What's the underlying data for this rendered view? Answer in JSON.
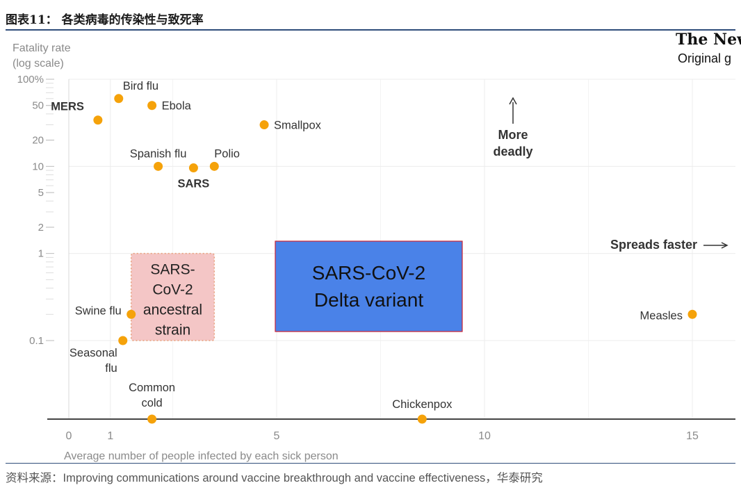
{
  "figure_title": "图表11：  各类病毒的传染性与致死率",
  "source_note": "资料来源：Improving communications around vaccine breakthrough and vaccine effectiveness，华泰研究",
  "attribution": {
    "masthead": "The New Y",
    "credit": "Original g"
  },
  "colors": {
    "point": "#f5a20a",
    "blue_box": "#4a82e8",
    "blue_border": "#cc2233",
    "pink_box": "#f4c6c6",
    "pink_border": "#e8a07a",
    "rule": "#2f4d7a"
  },
  "chart_data": {
    "type": "scatter",
    "title": "",
    "xlabel": "Average number of people infected by each sick person",
    "ylabel": "Fatality rate (log scale)",
    "ylabel_lines": [
      "Fatality rate",
      "(log scale)"
    ],
    "y_scale": "log",
    "xlim": [
      0,
      16
    ],
    "ylim": [
      0.1,
      100
    ],
    "x_ticks": [
      0,
      1,
      5,
      10,
      15
    ],
    "x_tick_labels": [
      "0",
      "1",
      "5",
      "10",
      "15"
    ],
    "y_ticks": [
      100,
      50,
      20,
      10,
      5,
      2,
      1,
      0.1
    ],
    "y_tick_labels": [
      "100%",
      "50",
      "20",
      "10",
      "5",
      "2",
      "1",
      "0.1"
    ],
    "baseline_label": "0",
    "points": [
      {
        "name": "Bird flu",
        "x": 1.2,
        "y": 60,
        "bold": false
      },
      {
        "name": "MERS",
        "x": 0.7,
        "y": 34,
        "bold": true
      },
      {
        "name": "Ebola",
        "x": 2.0,
        "y": 50,
        "bold": false
      },
      {
        "name": "Smallpox",
        "x": 4.7,
        "y": 30,
        "bold": false
      },
      {
        "name": "Spanish flu",
        "x": 2.15,
        "y": 10,
        "bold": false
      },
      {
        "name": "SARS",
        "x": 3.0,
        "y": 9.6,
        "bold": true
      },
      {
        "name": "Polio",
        "x": 3.5,
        "y": 10,
        "bold": false
      },
      {
        "name": "Swine flu",
        "x": 1.5,
        "y": 0.2,
        "bold": false
      },
      {
        "name": "Seasonal flu",
        "x": 1.3,
        "y": 0.1,
        "bold": false,
        "lines": [
          "Seasonal",
          "flu"
        ]
      },
      {
        "name": "Measles",
        "x": 15.0,
        "y": 0.2,
        "bold": false
      },
      {
        "name": "Common cold",
        "x": 2.0,
        "y": 0,
        "bold": false,
        "lines": [
          "Common",
          "cold"
        ]
      },
      {
        "name": "Chickenpox",
        "x": 8.5,
        "y": 0,
        "bold": false
      }
    ],
    "annotations": [
      {
        "text_lines": [
          "More",
          "deadly"
        ],
        "arrow": "up"
      },
      {
        "text": "Spreads faster",
        "arrow": "right"
      }
    ],
    "regions": [
      {
        "name": "SARS-CoV-2 ancestral strain",
        "lines": [
          "SARS-",
          "CoV-2",
          "ancestral",
          "strain"
        ],
        "x": [
          1.5,
          3.5
        ],
        "y": [
          0.1,
          1
        ]
      },
      {
        "name": "SARS-CoV-2 Delta variant",
        "lines": [
          "SARS-CoV-2",
          "Delta variant"
        ],
        "x": [
          5,
          9.5
        ],
        "y": [
          0.12,
          1.3
        ]
      }
    ]
  }
}
